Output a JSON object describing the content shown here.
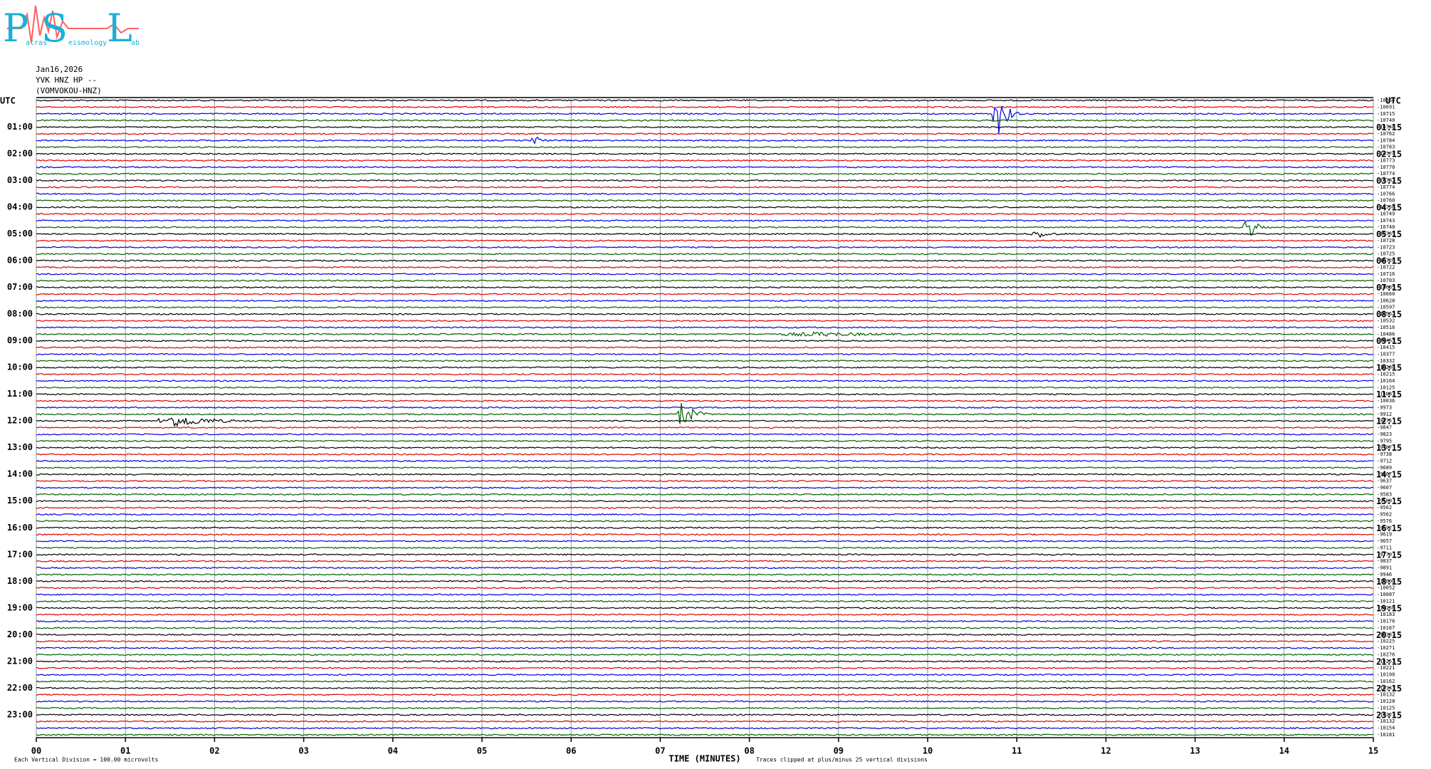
{
  "chart_data": {
    "type": "helicorder",
    "logo": {
      "letters": [
        "P",
        "S",
        "L"
      ],
      "words": [
        "atras",
        "eismology",
        "ab"
      ]
    },
    "header": [
      "Jan16,2026",
      "YVK HNZ HP --",
      "(VOMVOKOU-HNZ)"
    ],
    "left_title": "UTC",
    "right_title": "UTC",
    "left_hours": [
      "01:00",
      "02:00",
      "03:00",
      "04:00",
      "05:00",
      "06:00",
      "07:00",
      "08:00",
      "09:00",
      "10:00",
      "11:00",
      "12:00",
      "13:00",
      "14:00",
      "15:00",
      "16:00",
      "17:00",
      "18:00",
      "19:00",
      "20:00",
      "21:00",
      "22:00",
      "23:00"
    ],
    "right_hours": [
      "01:15",
      "02:15",
      "03:15",
      "04:15",
      "05:15",
      "06:15",
      "07:15",
      "08:15",
      "09:15",
      "10:15",
      "11:15",
      "12:15",
      "13:15",
      "14:15",
      "15:15",
      "16:15",
      "17:15",
      "18:15",
      "19:15",
      "20:15",
      "21:15",
      "22:15",
      "23:15"
    ],
    "row_values": [
      -10664,
      -10691,
      -10715,
      -10740,
      -10748,
      -10762,
      -10784,
      -10783,
      -10774,
      -10773,
      -10770,
      -10774,
      -10782,
      -10774,
      -10766,
      -10760,
      -10756,
      -10749,
      -10743,
      -10740,
      -10735,
      -10728,
      -10723,
      -10725,
      -10726,
      -10722,
      -10716,
      -10703,
      -10685,
      -10660,
      -10628,
      -10597,
      -10562,
      -10532,
      -10516,
      -10486,
      -10455,
      -10415,
      -10377,
      -10332,
      -10280,
      -10215,
      -10164,
      -10125,
      -10083,
      -10036,
      -9973,
      -9912,
      -9875,
      -9847,
      -9823,
      -9795,
      -9767,
      -9738,
      -9712,
      -9689,
      -9667,
      -9637,
      -9607,
      -9583,
      -9569,
      -9562,
      -9562,
      -9576,
      -9592,
      -9619,
      -9657,
      -9711,
      -9770,
      -9837,
      -9891,
      -9946,
      -10000,
      -10052,
      -10087,
      -10121,
      -10156,
      -10183,
      -10176,
      -10167,
      -10187,
      -10225,
      -10271,
      -10276,
      -10251,
      -10221,
      -10190,
      -10162,
      -10143,
      -10132,
      -10128,
      -10125,
      -10127,
      -10132,
      -10154,
      -10181
    ],
    "colors": [
      "#000000",
      "#e00000",
      "#0000e0",
      "#006000"
    ],
    "xlim": [
      0,
      15
    ],
    "xticks": [
      {
        "value": 0,
        "label": "00"
      },
      {
        "value": 1,
        "label": "01"
      },
      {
        "value": 2,
        "label": "02"
      },
      {
        "value": 3,
        "label": "03"
      },
      {
        "value": 4,
        "label": "04"
      },
      {
        "value": 5,
        "label": "05"
      },
      {
        "value": 6,
        "label": "06"
      },
      {
        "value": 7,
        "label": "07"
      },
      {
        "value": 8,
        "label": "08"
      },
      {
        "value": 9,
        "label": "09"
      },
      {
        "value": 10,
        "label": "10"
      },
      {
        "value": 11,
        "label": "11"
      },
      {
        "value": 12,
        "label": "12"
      },
      {
        "value": 13,
        "label": "13"
      },
      {
        "value": 14,
        "label": "14"
      },
      {
        "value": 15,
        "label": "15"
      }
    ],
    "xlabel": "TIME (MINUTES)",
    "note_left": "Each Vertical Division =  100.00 microvolts",
    "note_right": "Traces clipped at plus/minus 25 vertical divisions"
  }
}
